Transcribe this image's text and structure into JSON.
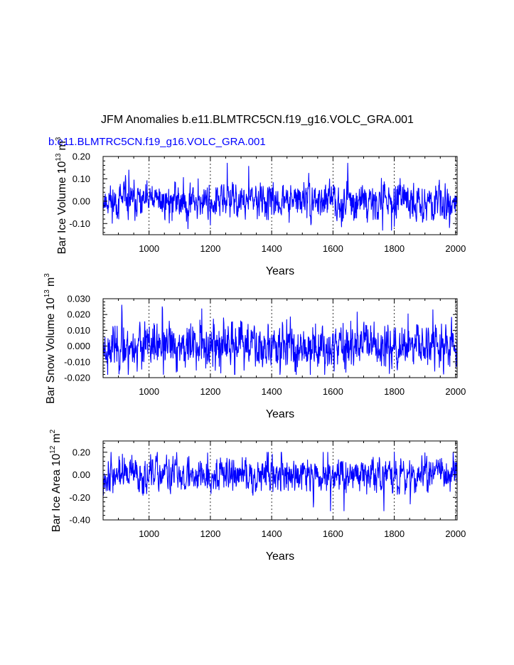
{
  "title": "JFM Anomalies b.e11.BLMTRC5CN.f19_g16.VOLC_GRA.001",
  "subtitle": "b.e11.BLMTRC5CN.f19_g16.VOLC_GRA.001",
  "colors": {
    "line": "#0000ff",
    "subtitle": "#0000ff",
    "axis": "#000000",
    "grid": "#000000"
  },
  "chart_data": [
    {
      "type": "line",
      "ylabel_main": "Bar Ice Volume 10",
      "ylabel_exp": "13",
      "ylabel_unit": "m",
      "ylabel_unit_exp": "3",
      "xlabel": "Years",
      "xlim": [
        850,
        2005
      ],
      "ylim": [
        -0.15,
        0.2
      ],
      "xticks": [
        1000,
        1200,
        1400,
        1600,
        1800,
        2000
      ],
      "xtick_labels": [
        "1000",
        "1200",
        "1400",
        "1600",
        "1800",
        "2000"
      ],
      "yticks": [
        -0.1,
        0.0,
        0.1,
        0.2
      ],
      "ytick_labels": [
        "-0.10",
        "0.00",
        "0.10",
        "0.20"
      ],
      "ref_lines_x": [
        1000,
        1200,
        1400,
        1600,
        1800,
        2000
      ],
      "series": {
        "name": "Bar Ice Volume",
        "amplitude": 0.035,
        "min": -0.13,
        "max": 0.17,
        "seed": 11
      }
    },
    {
      "type": "line",
      "ylabel_main": "Bar Snow Volume 10",
      "ylabel_exp": "13",
      "ylabel_unit": "m",
      "ylabel_unit_exp": "3",
      "xlabel": "Years",
      "xlim": [
        850,
        2005
      ],
      "ylim": [
        -0.02,
        0.03
      ],
      "xticks": [
        1000,
        1200,
        1400,
        1600,
        1800,
        2000
      ],
      "xtick_labels": [
        "1000",
        "1200",
        "1400",
        "1600",
        "1800",
        "2000"
      ],
      "yticks": [
        -0.02,
        -0.01,
        0.0,
        0.01,
        0.02,
        0.03
      ],
      "ytick_labels": [
        "-0.020",
        "-0.010",
        "0.000",
        "0.010",
        "0.020",
        "0.030"
      ],
      "ref_lines_x": [
        1000,
        1200,
        1400,
        1600,
        1800,
        2000
      ],
      "series": {
        "name": "Bar Snow Volume",
        "amplitude": 0.0065,
        "min": -0.018,
        "max": 0.026,
        "seed": 23
      }
    },
    {
      "type": "line",
      "ylabel_main": "Bar Ice Area 10",
      "ylabel_exp": "12",
      "ylabel_unit": "m",
      "ylabel_unit_exp": "2",
      "xlabel": "Years",
      "xlim": [
        850,
        2005
      ],
      "ylim": [
        -0.4,
        0.3
      ],
      "xticks": [
        1000,
        1200,
        1400,
        1600,
        1800,
        2000
      ],
      "xtick_labels": [
        "1000",
        "1200",
        "1400",
        "1600",
        "1800",
        "2000"
      ],
      "yticks": [
        -0.4,
        -0.2,
        0.0,
        0.2
      ],
      "ytick_labels": [
        "-0.40",
        "-0.20",
        "0.00",
        "0.20"
      ],
      "ref_lines_x": [
        1000,
        1200,
        1400,
        1600,
        1800,
        2000
      ],
      "series": {
        "name": "Bar Ice Area",
        "amplitude": 0.07,
        "min": -0.32,
        "max": 0.2,
        "seed": 37
      }
    }
  ]
}
